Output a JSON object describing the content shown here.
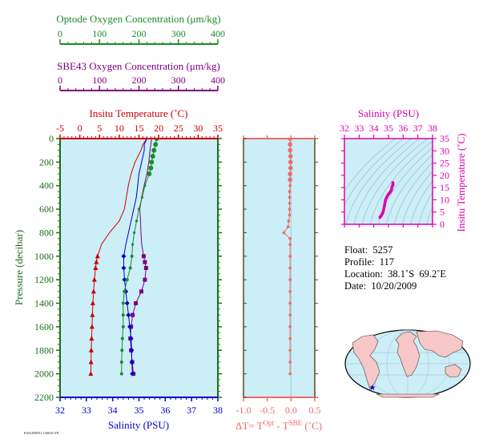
{
  "colors": {
    "optode": "#1a8c2a",
    "sbe43": "#800080",
    "temperature": "#cc0000",
    "salinity": "#0000cc",
    "pressure_axis": "#1a6e1a",
    "delta": "#f06a6a",
    "ts_magenta": "#e000b0",
    "panel_bg": "#cceef7",
    "land": "#f7c6c6"
  },
  "optode_axis": {
    "title": "Optode Oxygen Concentration (μm/kg)",
    "ticks": [
      "0",
      "100",
      "200",
      "300",
      "400"
    ],
    "range": [
      0,
      400
    ]
  },
  "sbe43_axis": {
    "title": "SBE43 Oxygen Concentration (μm/kg)",
    "ticks": [
      "0",
      "100",
      "200",
      "300",
      "400"
    ],
    "range": [
      0,
      400
    ]
  },
  "temp_axis": {
    "title": "Insitu Temperature (˚C)",
    "ticks": [
      "-5",
      "0",
      "5",
      "10",
      "15",
      "20",
      "25",
      "30",
      "35"
    ],
    "range": [
      -5,
      35
    ]
  },
  "sal_axis": {
    "title": "Salinity (PSU)",
    "ticks": [
      "32",
      "33",
      "34",
      "35",
      "36",
      "37",
      "38"
    ],
    "range": [
      32,
      38
    ]
  },
  "pressure_axis": {
    "title": "Pressure (decibar)",
    "ticks": [
      "0",
      "200",
      "400",
      "600",
      "800",
      "1000",
      "1200",
      "1400",
      "1600",
      "1800",
      "2000",
      "2200"
    ],
    "range": [
      0,
      2200
    ]
  },
  "delta_axis": {
    "title_main": "ΔT= T",
    "sup1": "Opt",
    "title_mid": " - T",
    "sup2": "SBE",
    "title_end": " (˚C)",
    "ticks": [
      "-1.0",
      "-0.5",
      "0.0",
      "0.5"
    ],
    "range": [
      -1.0,
      0.5
    ]
  },
  "ts_axis": {
    "title_x": "Salinity (PSU)",
    "ticks_x": [
      "32",
      "33",
      "34",
      "35",
      "36",
      "37",
      "38"
    ],
    "range_x": [
      32,
      38
    ],
    "title_y": "Insitu Temperature (˚C)",
    "ticks_y": [
      "0",
      "5",
      "10",
      "15",
      "20",
      "25",
      "30",
      "35"
    ],
    "range_y": [
      0,
      35
    ]
  },
  "info": {
    "float": "Float:  5257",
    "profile": "Profile:  117",
    "location": "Location:  38.1˚S  69.2˚E",
    "date": "Date:  10/20/2009"
  },
  "map": {
    "float_marker": "★"
  },
  "stamp": "ESSLB0EF1 150030 YE",
  "chart_data": [
    {
      "type": "line",
      "name": "profile",
      "temperature": {
        "pressure": [
          0,
          50,
          100,
          200,
          300,
          400,
          500,
          600,
          700,
          800,
          900,
          1000,
          1050,
          1100,
          1200,
          1300,
          1400,
          1500,
          1600,
          1700,
          1800,
          1900,
          2000
        ],
        "values": [
          17.0,
          16.0,
          15.5,
          14.0,
          13.0,
          12.3,
          11.8,
          11.3,
          10.0,
          7.5,
          5.5,
          4.5,
          4.2,
          4.0,
          3.7,
          3.5,
          3.3,
          3.2,
          3.1,
          3.0,
          2.9,
          2.85,
          2.8
        ]
      },
      "salinity": {
        "pressure": [
          0,
          50,
          100,
          200,
          300,
          400,
          500,
          600,
          700,
          800,
          900,
          1000,
          1100,
          1200,
          1300,
          1400,
          1500,
          1600,
          1700,
          1800,
          1900,
          2000
        ],
        "values": [
          35.3,
          35.2,
          35.2,
          35.1,
          35.0,
          34.95,
          34.9,
          34.8,
          34.7,
          34.6,
          34.5,
          34.42,
          34.42,
          34.45,
          34.5,
          34.55,
          34.6,
          34.65,
          34.7,
          34.72,
          34.73,
          34.75
        ]
      },
      "optode_oxygen": {
        "pressure": [
          0,
          50,
          100,
          150,
          200,
          250,
          300,
          400,
          500,
          600,
          700,
          800,
          900,
          1000,
          1100,
          1200,
          1300,
          1400,
          1500,
          1600,
          1700,
          1800,
          1900,
          2000
        ],
        "values": [
          245,
          242,
          238,
          235,
          232,
          230,
          226,
          215,
          208,
          200,
          194,
          188,
          184,
          182,
          178,
          170,
          163,
          160,
          160,
          160,
          158,
          157,
          156,
          156
        ]
      },
      "sbe43_oxygen": {
        "pressure": [
          0,
          100,
          200,
          300,
          400,
          500,
          600,
          700,
          800,
          900,
          1000,
          1050,
          1100,
          1200,
          1300,
          1400,
          1500,
          1600,
          1700,
          1800,
          1900,
          2000
        ],
        "values": [
          232,
          228,
          225,
          220,
          213,
          207,
          202,
          204,
          205,
          207,
          212,
          215,
          218,
          215,
          206,
          192,
          184,
          180,
          178,
          180,
          183,
          186
        ]
      }
    },
    {
      "type": "scatter",
      "name": "delta_T",
      "pressure": [
        0,
        50,
        100,
        150,
        200,
        250,
        300,
        350,
        400,
        450,
        500,
        550,
        600,
        650,
        700,
        750,
        800,
        850,
        900,
        1000,
        1100,
        1200,
        1300,
        1400,
        1500,
        1600,
        1700,
        1800,
        1900,
        2000
      ],
      "values": [
        -0.02,
        -0.02,
        -0.02,
        -0.01,
        -0.01,
        -0.01,
        -0.02,
        -0.02,
        -0.02,
        -0.03,
        -0.03,
        -0.03,
        -0.03,
        -0.03,
        -0.05,
        -0.06,
        -0.15,
        -0.02,
        -0.02,
        -0.02,
        -0.02,
        -0.02,
        -0.02,
        -0.02,
        -0.02,
        -0.02,
        -0.02,
        -0.02,
        -0.02,
        -0.02
      ]
    },
    {
      "type": "scatter",
      "name": "TS",
      "salinity": [
        34.42,
        34.45,
        34.5,
        34.55,
        34.6,
        34.65,
        34.72,
        34.8,
        34.9,
        35.0,
        35.1,
        35.2,
        35.25,
        35.3,
        35.3
      ],
      "temperature": [
        2.8,
        3.1,
        3.5,
        4.0,
        4.5,
        5.5,
        7.5,
        10.0,
        11.3,
        12.3,
        13.0,
        14.0,
        15.5,
        16.0,
        17.0
      ]
    }
  ]
}
